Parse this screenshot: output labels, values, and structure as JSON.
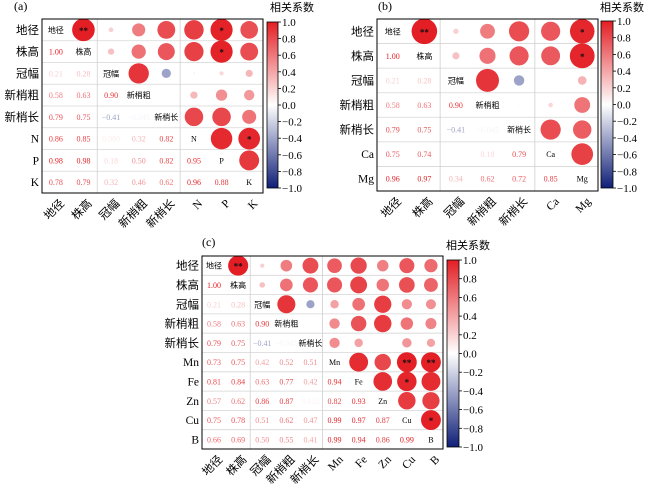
{
  "colorbar": {
    "title": "相关系数",
    "ticks": [
      "1.0",
      "0.8",
      "0.6",
      "0.4",
      "0.2",
      "0.0",
      "−0.2",
      "−0.4",
      "−0.6",
      "−0.8",
      "−1.0"
    ],
    "tick_values": [
      1.0,
      0.8,
      0.6,
      0.4,
      0.2,
      0.0,
      -0.2,
      -0.4,
      -0.6,
      -0.8,
      -1.0
    ],
    "pos_color": "#e31e24",
    "neg_color": "#0f1f78"
  },
  "chart_data": [
    {
      "type": "heatmap",
      "panel": "(a)",
      "labels": [
        "地径",
        "株高",
        "冠幅",
        "新梢粗",
        "新梢长",
        "N",
        "P",
        "K"
      ],
      "lower": [
        [],
        [
          "1.00"
        ],
        [
          "0.21",
          "0.28"
        ],
        [
          "0.58",
          "0.63",
          "0.90"
        ],
        [
          "0.79",
          "0.75",
          "−0.41",
          "−0.045"
        ],
        [
          "0.86",
          "0.85",
          "0.080",
          "0.32",
          "0.82"
        ],
        [
          "0.98",
          "0.98",
          "0.18",
          "0.50",
          "0.82",
          "0.95"
        ],
        [
          "0.78",
          "0.79",
          "0.32",
          "0.46",
          "0.62",
          "0.96",
          "0.88"
        ]
      ],
      "stars": [
        [
          "地径",
          "株高",
          "**"
        ],
        [
          "地径",
          "P",
          "*"
        ],
        [
          "株高",
          "P",
          "*"
        ],
        [
          "N",
          "K",
          "*"
        ]
      ],
      "range": [
        -1,
        1
      ]
    },
    {
      "type": "heatmap",
      "panel": "(b)",
      "labels": [
        "地径",
        "株高",
        "冠幅",
        "新梢粗",
        "新梢长",
        "Ca",
        "Mg"
      ],
      "lower": [
        [],
        [
          "1.00"
        ],
        [
          "0.21",
          "0.28"
        ],
        [
          "0.58",
          "0.63",
          "0.90"
        ],
        [
          "0.79",
          "0.75",
          "−0.41",
          "−0.045"
        ],
        [
          "0.75",
          "0.74",
          "0.0060",
          "0.18",
          "0.79"
        ],
        [
          "0.96",
          "0.97",
          "0.34",
          "0.62",
          "0.72",
          "0.85"
        ]
      ],
      "stars": [
        [
          "地径",
          "株高",
          "**"
        ],
        [
          "地径",
          "Mg",
          "*"
        ],
        [
          "株高",
          "Mg",
          "*"
        ]
      ],
      "range": [
        -1,
        1
      ]
    },
    {
      "type": "heatmap",
      "panel": "(c)",
      "labels": [
        "地径",
        "株高",
        "冠幅",
        "新梢粗",
        "新梢长",
        "Mn",
        "Fe",
        "Zn",
        "Cu",
        "B"
      ],
      "lower": [
        [],
        [
          "1.00"
        ],
        [
          "0.21",
          "0.28"
        ],
        [
          "0.58",
          "0.63",
          "0.90"
        ],
        [
          "0.79",
          "0.75",
          "−0.41",
          "−0.045"
        ],
        [
          "0.73",
          "0.75",
          "0.42",
          "0.52",
          "0.51"
        ],
        [
          "0.81",
          "0.84",
          "0.63",
          "0.77",
          "0.42",
          "0.94"
        ],
        [
          "0.57",
          "0.62",
          "0.86",
          "0.87",
          "0.055",
          "0.82",
          "0.93"
        ],
        [
          "0.75",
          "0.78",
          "0.51",
          "0.62",
          "0.47",
          "0.99",
          "0.97",
          "0.87"
        ],
        [
          "0.66",
          "0.69",
          "0.50",
          "0.55",
          "0.41",
          "0.99",
          "0.94",
          "0.86",
          "0.99"
        ]
      ],
      "stars": [
        [
          "地径",
          "株高",
          "**"
        ],
        [
          "Mn",
          "Cu",
          "**"
        ],
        [
          "Mn",
          "B",
          "**"
        ],
        [
          "Fe",
          "Cu",
          "*"
        ],
        [
          "Cu",
          "B",
          "*"
        ]
      ],
      "range": [
        -1,
        1
      ]
    }
  ]
}
